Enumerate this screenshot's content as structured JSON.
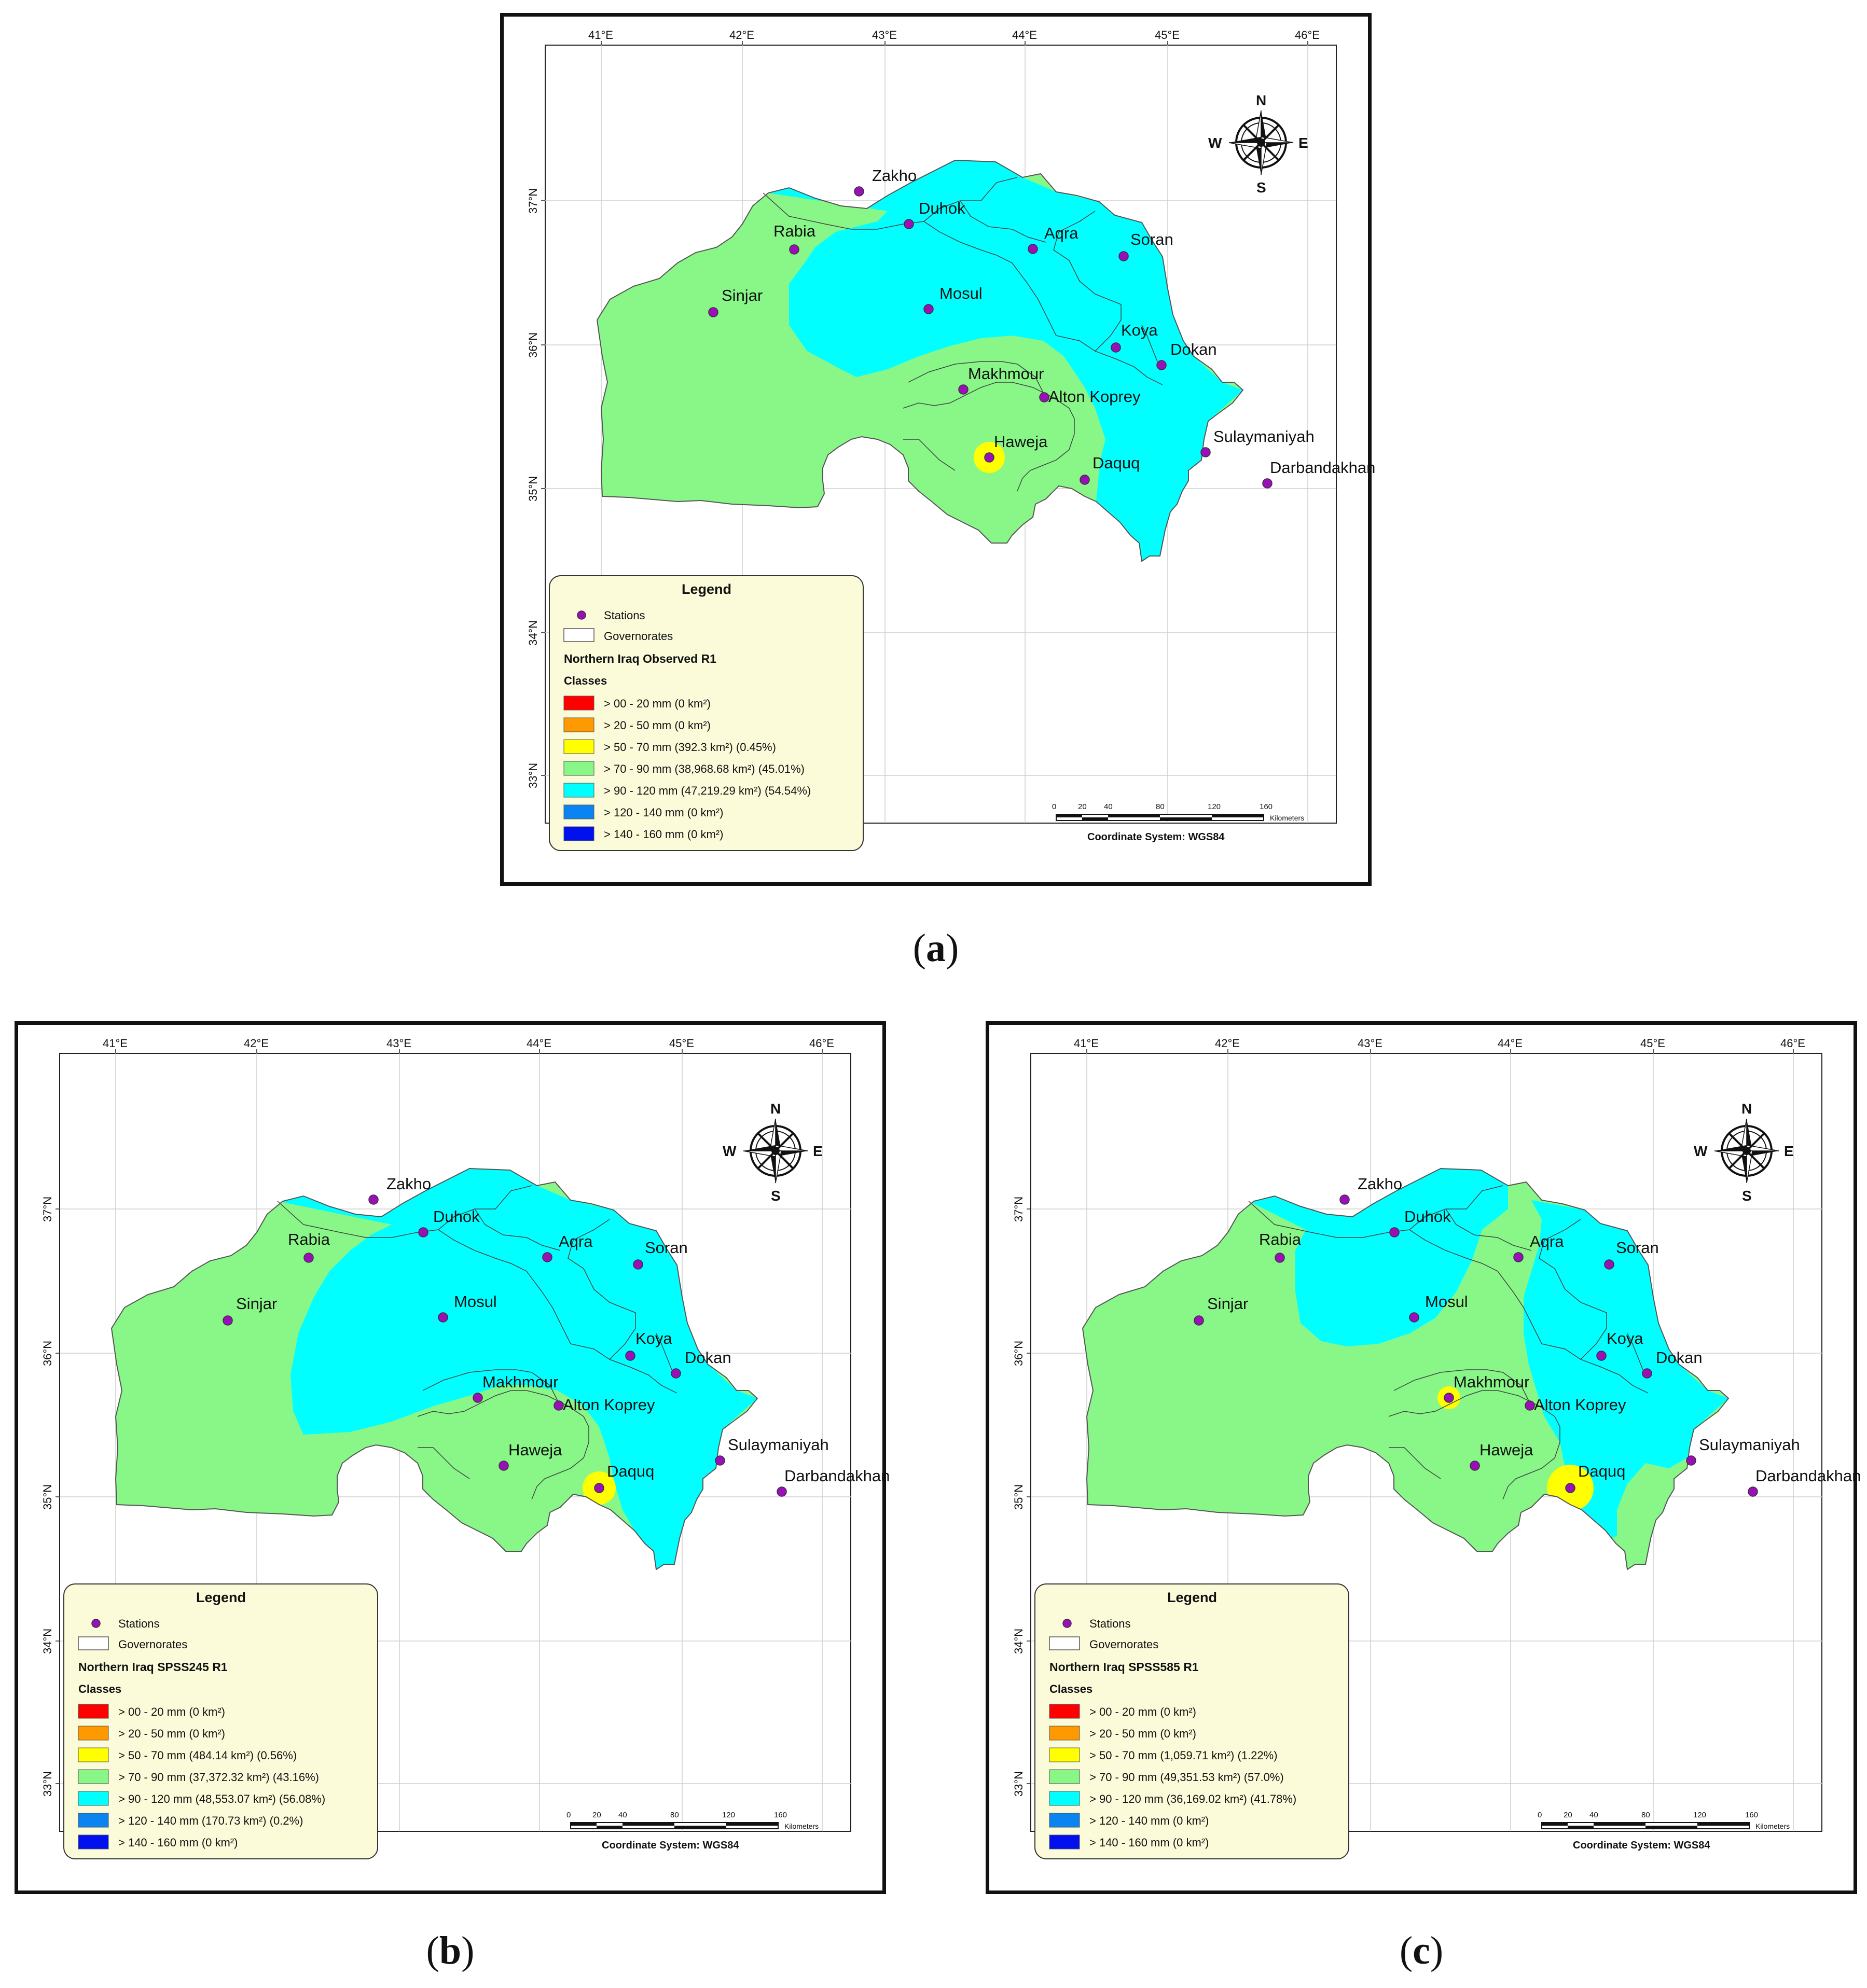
{
  "captions": {
    "a": "a",
    "b": "b",
    "c": "c"
  },
  "axes": {
    "lon_labels": [
      "41°E",
      "42°E",
      "43°E",
      "44°E",
      "45°E",
      "46°E"
    ],
    "lat_labels": [
      "37°N",
      "36°N",
      "35°N",
      "34°N",
      "33°N"
    ]
  },
  "compass": {
    "n": "N",
    "s": "S",
    "e": "E",
    "w": "W"
  },
  "scalebar": {
    "ticks": [
      "0",
      "20",
      "40",
      "80",
      "120",
      "160"
    ],
    "unit": "Kilometers",
    "coord": "Coordinate System: WGS84"
  },
  "stations": [
    "Zakho",
    "Duhok",
    "Rabia",
    "Aqra",
    "Soran",
    "Sinjar",
    "Mosul",
    "Koya",
    "Dokan",
    "Makhmour",
    "Alton Koprey",
    "Haweja",
    "Daquq",
    "Sulaymaniyah",
    "Darbandakhan"
  ],
  "legend_common": {
    "title": "Legend",
    "stations": "Stations",
    "governorates": "Governorates",
    "classes": "Classes"
  },
  "colors": {
    "c1": "#ff0000",
    "c2": "#ff9900",
    "c3": "#ffff00",
    "c4": "#88f788",
    "c5": "#00ffff",
    "c6": "#0a84f0",
    "c7": "#0011ee",
    "legend_bg": "#fbfbd9",
    "station": "#9a10b8"
  },
  "maps": [
    {
      "id": "a",
      "legend_layer": "Northern Iraq Observed R1",
      "classes": [
        "> 00 - 20 mm (0 km²)",
        "> 20 - 50 mm (0 km²)",
        "> 50 - 70 mm (392.3 km²) (0.45%)",
        "> 70 - 90 mm (38,968.68 km²) (45.01%)",
        "> 90 - 120 mm (47,219.29 km²) (54.54%)",
        "> 120 - 140 mm (0 km²)",
        "> 140 - 160 mm (0 km²)"
      ]
    },
    {
      "id": "b",
      "legend_layer": "Northern Iraq SPSS245 R1",
      "classes": [
        "> 00 - 20 mm (0 km²)",
        "> 20 - 50 mm (0 km²)",
        "> 50 - 70 mm (484.14 km²) (0.56%)",
        "> 70 - 90 mm (37,372.32 km²) (43.16%)",
        "> 90 - 120 mm (48,553.07 km²) (56.08%)",
        "> 120 - 140 mm (170.73 km²) (0.2%)",
        "> 140 - 160 mm (0 km²)"
      ]
    },
    {
      "id": "c",
      "legend_layer": "Northern Iraq SPSS585 R1",
      "classes": [
        "> 00 - 20 mm (0 km²)",
        "> 20 - 50 mm (0 km²)",
        "> 50 - 70 mm (1,059.71 km²) (1.22%)",
        "> 70 - 90 mm (49,351.53 km²) (57.0%)",
        "> 90 - 120 mm (36,169.02 km²) (41.78%)",
        "> 120 - 140 mm (0 km²)",
        "> 140 - 160 mm (0 km²)"
      ]
    }
  ]
}
